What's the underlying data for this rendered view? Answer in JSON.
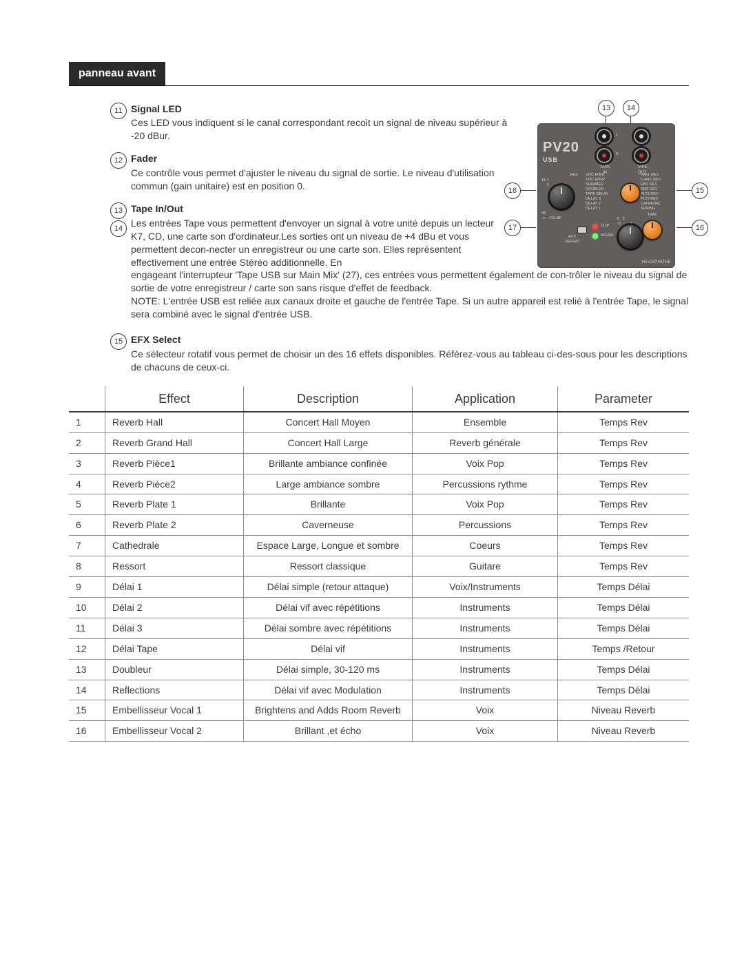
{
  "header": {
    "tab": "panneau avant"
  },
  "items": [
    {
      "nums": [
        "11"
      ],
      "title": "Signal LED",
      "para": "Ces LED vous indiquent si le canal correspondant recoit un signal de niveau supérieur à -20 dBur.",
      "flow": "indent"
    },
    {
      "nums": [
        "12"
      ],
      "title": "Fader",
      "para": "Ce contrôle vous permet d'ajuster le niveau du signal de sortie. Le niveau d'utilisation commun (gain unitaire) est en position 0.",
      "flow": "indent"
    },
    {
      "nums": [
        "13",
        "14"
      ],
      "title": "Tape In/Out",
      "para": "Les entrées Tape vous permettent d'envoyer un signal à votre unité depuis un lecteur K7, CD, une carte son d'ordinateur.Les sorties ont un niveau de +4 dBu et vous permettent decon-necter un enregistreur ou une carte son. Elles représentent effectivement une entrée Stéréo additionnelle. En engageant l'interrupteur 'Tape USB sur Main Mix' (27), ces entrées vous permettent également de con-trôler le niveau du signal de sortie de votre enregistreur / carte son sans risque d'effet de feedback.",
      "note": "NOTE: L'entrée USB est reliée aux canaux droite et gauche de l'entrée Tape. Si un autre appareil est relié à l'entrée Tape, le signal sera combiné avec le signal d'entrée USB.",
      "flow": "indent-then-full"
    },
    {
      "nums": [
        "15"
      ],
      "title": "EFX Select",
      "para": "Ce sélecteur rotatif vous permet de choisir un des 16 effets disponibles. Référez-vous au tableau ci-des-sous pour les descriptions de chacuns de ceux-ci.",
      "flow": "full"
    }
  ],
  "panel": {
    "model": "PV20",
    "usb": "USB",
    "tape_in": "TAPE\nIN",
    "tape_out": "TAPE\nOUT",
    "efx_list": "VOC ENH1\nVOC ENH2\nSHIMMER\nDOUBLER\nTAPE DELAY\nDELAY 3\nDELAY 2\nDELAY 1",
    "efx_list_right": "HALL REV\nLHALL REV\nRM1 REV\nRM2 REV\nPLT1 REV\nPLT2 REV\nCATHEDRL\nSPRING",
    "efx_label": "EFX",
    "ticks_left": "16 1\n     2\n         4\n           8",
    "clip": "CLIP",
    "signal": "SIGNAL",
    "efx_defeat": "EFX\nDEFEAT",
    "time": "TIME",
    "level_ticks": "0   2\n-5         4\n                6\n                   8\n                 10",
    "bottom_scale": "48\n-∞   +10 dB",
    "headphone": "HEADPHONE",
    "callouts": {
      "c13": "13",
      "c14": "14",
      "c15": "15",
      "c16": "16",
      "c17": "17",
      "c18": "18"
    }
  },
  "table": {
    "headers": [
      "",
      "Effect",
      "Description",
      "Application",
      "Parameter"
    ],
    "rows": [
      [
        "1",
        "Reverb Hall",
        "Concert Hall Moyen",
        "Ensemble",
        "Temps Rev"
      ],
      [
        "2",
        "Reverb Grand Hall",
        "Concert Hall Large",
        "Reverb générale",
        "Temps Rev"
      ],
      [
        "3",
        "Reverb Pièce1",
        "Brillante ambiance confinée",
        "Voix Pop",
        "Temps Rev"
      ],
      [
        "4",
        "Reverb Pièce2",
        "Large ambiance sombre",
        "Percussions rythme",
        "Temps Rev"
      ],
      [
        "5",
        "Reverb Plate 1",
        "Brillante",
        "Voix Pop",
        "Temps Rev"
      ],
      [
        "6",
        "Reverb Plate 2",
        "Caverneuse",
        "Percussions",
        "Temps Rev"
      ],
      [
        "7",
        "Cathedrale",
        "Espace Large, Longue et sombre",
        "Coeurs",
        "Temps Rev"
      ],
      [
        "8",
        "Ressort",
        "Ressort classique",
        "Guitare",
        "Temps Rev"
      ],
      [
        "9",
        "Délai 1",
        "Délai simple (retour attaque)",
        "Voix/Instruments",
        "Temps  Délai"
      ],
      [
        "10",
        "Délai 2",
        "Délai vif avec répétitions",
        "Instruments",
        "Temps  Délai"
      ],
      [
        "11",
        "Délai 3",
        "Délai sombre  avec répétitions",
        "Instruments",
        "Temps  Délai"
      ],
      [
        "12",
        "Délai Tape",
        "Délai vif",
        "Instruments",
        "Temps /Retour"
      ],
      [
        "13",
        "Doubleur",
        "Délai simple, 30-120 ms",
        "Instruments",
        "Temps  Délai"
      ],
      [
        "14",
        "Reflections",
        "Délai vif avec Modulation",
        "Instruments",
        "Temps  Délai"
      ],
      [
        "15",
        "Embellisseur Vocal 1",
        "Brightens and Adds Room Reverb",
        "Voix",
        "Niveau Reverb"
      ],
      [
        "16",
        "Embellisseur Vocal 2",
        "Brillant ,et écho",
        "Voix",
        "Niveau Reverb"
      ]
    ]
  }
}
